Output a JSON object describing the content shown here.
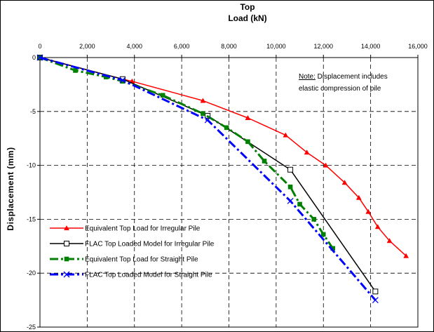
{
  "chart_data": {
    "type": "line",
    "title": "Top",
    "xlabel": "Load (kN)",
    "ylabel": "Displacement (mm)",
    "xlim": [
      0,
      16000
    ],
    "ylim": [
      -25,
      0
    ],
    "x_ticks": [
      "0",
      "2,000",
      "4,000",
      "6,000",
      "8,000",
      "10,000",
      "12,000",
      "14,000",
      "16,000"
    ],
    "y_ticks": [
      "0",
      "-5",
      "-10",
      "-15",
      "-20",
      "-25"
    ],
    "x_axis_position": "top",
    "grid": "dashed",
    "legend_position": "bottom-left",
    "note": {
      "label": "Note:",
      "line1": " Displacement includes",
      "line2": "elastic compression of pile"
    },
    "series": [
      {
        "name": "Equivalent Top Load for Irregular Pile",
        "color": "#ff0000",
        "style": "solid",
        "marker": "filled-triangle",
        "x": [
          0,
          3500,
          3900,
          6900,
          8800,
          10400,
          11300,
          12100,
          12900,
          13500,
          13900,
          14300,
          14800,
          15500
        ],
        "y": [
          0,
          -2.0,
          -2.2,
          -4.0,
          -5.6,
          -7.2,
          -8.8,
          -10.0,
          -11.6,
          -13.0,
          -14.3,
          -15.7,
          -17.0,
          -18.4
        ]
      },
      {
        "name": "FLAC Top Loaded Model for Irregular Pile",
        "color": "#000000",
        "style": "solid",
        "marker": "open-square",
        "x": [
          0,
          3500,
          7100,
          10600,
          14200
        ],
        "y": [
          0,
          -2.0,
          -5.4,
          -10.4,
          -21.7
        ]
      },
      {
        "name": "Equivalent Top Load for Straight Pile",
        "color": "#008000",
        "style": "dash-dot",
        "marker": "filled-square",
        "x": [
          0,
          1500,
          2800,
          3500,
          5200,
          6900,
          7900,
          8800,
          9500,
          10600,
          11000,
          11600,
          12000,
          12400
        ],
        "y": [
          0,
          -1.2,
          -1.8,
          -2.2,
          -3.5,
          -5.2,
          -6.5,
          -7.8,
          -9.6,
          -12.0,
          -13.6,
          -15.0,
          -16.4,
          -17.7
        ]
      },
      {
        "name": "FLAC Top Loaded Model for Straight Pile",
        "color": "#0000ff",
        "style": "dash-dot",
        "marker": "x",
        "x": [
          0,
          3500,
          7100,
          10600,
          14200
        ],
        "y": [
          0,
          -2.1,
          -5.8,
          -13.3,
          -22.5
        ]
      }
    ]
  }
}
